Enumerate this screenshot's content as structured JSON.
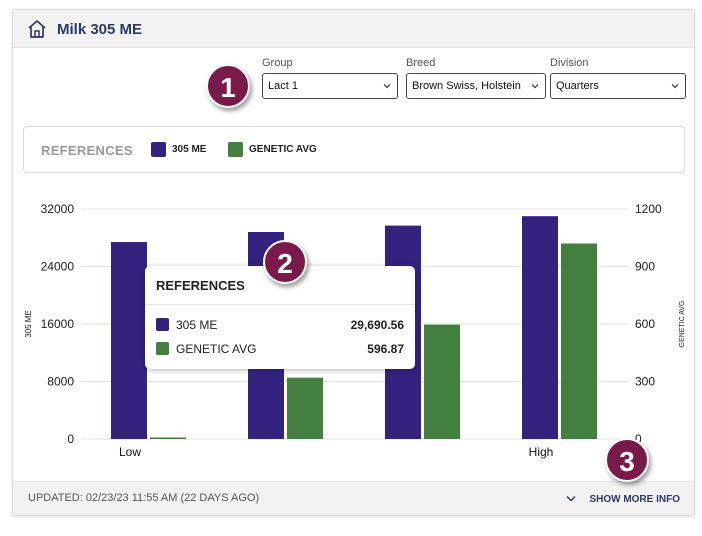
{
  "header": {
    "title": "Milk 305 ME",
    "home_icon": "home-icon"
  },
  "filters": {
    "group": {
      "label": "Group",
      "value": "Lact 1"
    },
    "breed": {
      "label": "Breed",
      "value": "Brown Swiss, Holstein"
    },
    "division": {
      "label": "Division",
      "value": "Quarters"
    }
  },
  "references": {
    "title": "REFERENCES",
    "legend": [
      {
        "name": "305 ME",
        "color": "#33237f"
      },
      {
        "name": "GENETIC AVG",
        "color": "#43803f"
      }
    ]
  },
  "chart_data": {
    "type": "bar",
    "categories": [
      "Low",
      "",
      "",
      "High"
    ],
    "series": [
      {
        "name": "305 ME",
        "axis": "left",
        "color": "#33237f",
        "values": [
          27400,
          28800,
          29690.56,
          31000
        ]
      },
      {
        "name": "GENETIC AVG",
        "axis": "right",
        "color": "#43803f",
        "values": [
          8,
          320,
          596.87,
          1020
        ]
      }
    ],
    "ylabel": "305 ME",
    "ylabel_right": "GENETIC AVG",
    "ylim": [
      0,
      32000
    ],
    "ylim_right": [
      0,
      1200
    ],
    "yticks": [
      "0",
      "8000",
      "16000",
      "24000",
      "32000"
    ],
    "yticks_right": [
      "0",
      "300",
      "600",
      "900",
      "1200"
    ],
    "grid": true
  },
  "tooltip": {
    "title": "REFERENCES",
    "rows": [
      {
        "label": "305 ME",
        "value": "29,690.56",
        "color": "#33237f"
      },
      {
        "label": "GENETIC AVG",
        "value": "596.87",
        "color": "#43803f"
      }
    ]
  },
  "badges": [
    "1",
    "2",
    "3"
  ],
  "footer": {
    "updated": "UPDATED: 02/23/23 11:55 AM (22 DAYS AGO)",
    "more": "SHOW MORE INFO"
  }
}
